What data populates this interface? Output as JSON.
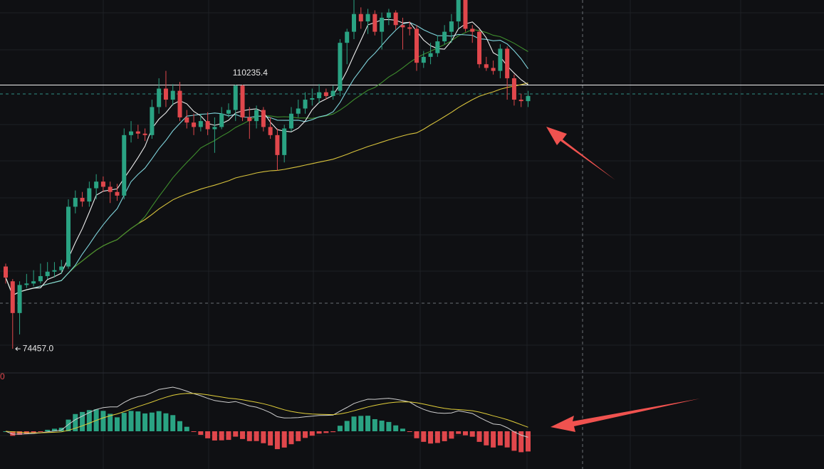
{
  "chart_data": {
    "type": "candlestick",
    "open": [
      85600,
      83600,
      79300,
      83100,
      83300,
      83600,
      84300,
      84900,
      85100,
      85600,
      93700,
      94900,
      94400,
      96200,
      97100,
      96400,
      95700,
      95200,
      103400,
      103900,
      103600,
      103400,
      107200,
      109700,
      108200,
      109400,
      105800,
      105100,
      104500,
      105300,
      104200,
      104500,
      106300,
      106800,
      110100,
      105800,
      105300,
      106800,
      104500,
      103400,
      100700,
      104300,
      106300,
      107000,
      108200,
      108400,
      109200,
      108700,
      109400,
      115900,
      117400,
      119800,
      118800,
      119800,
      117400,
      119300,
      120000,
      118300,
      118000,
      117800,
      113200,
      114000,
      114500,
      116100,
      117400,
      118800,
      122200,
      117800,
      117400,
      113000,
      112500,
      112100,
      115100,
      111100,
      108200,
      108000
    ],
    "high": [
      86000,
      83900,
      83600,
      84600,
      85100,
      86000,
      86200,
      86200,
      86500,
      94700,
      95900,
      95700,
      97100,
      98100,
      97800,
      97100,
      96800,
      104300,
      105300,
      104800,
      104300,
      108200,
      111100,
      112100,
      110300,
      110600,
      106800,
      106300,
      106300,
      106500,
      105800,
      107200,
      107700,
      110235.4,
      110235.4,
      107200,
      107400,
      107200,
      105800,
      104300,
      104800,
      107200,
      108200,
      109200,
      109700,
      110300,
      109700,
      110100,
      116400,
      117800,
      121700,
      120700,
      120500,
      120300,
      120000,
      120500,
      120300,
      119300,
      118800,
      118300,
      114800,
      115900,
      116900,
      118300,
      119800,
      122700,
      122700,
      118300,
      117700,
      114000,
      113500,
      115700,
      115400,
      111600,
      109000,
      109400
    ],
    "low": [
      83300,
      74457,
      76400,
      82700,
      82900,
      83300,
      83900,
      84100,
      84600,
      85300,
      92800,
      93700,
      93700,
      94700,
      95700,
      94200,
      94500,
      94700,
      102400,
      102900,
      102600,
      102900,
      106300,
      107200,
      107400,
      105300,
      104300,
      103400,
      103900,
      103400,
      101000,
      104200,
      105800,
      105300,
      105300,
      102900,
      104300,
      103900,
      102900,
      98600,
      99700,
      103900,
      105800,
      106300,
      107400,
      107700,
      108200,
      108200,
      108700,
      113000,
      116400,
      117800,
      117100,
      116900,
      115000,
      118300,
      117700,
      115000,
      116900,
      112100,
      112500,
      113000,
      114000,
      115700,
      115900,
      117800,
      117400,
      115900,
      112500,
      112100,
      111600,
      111100,
      108200,
      107400,
      107200,
      107200
    ],
    "close": [
      84100,
      79300,
      83100,
      83300,
      83600,
      84300,
      84900,
      85100,
      85600,
      93700,
      94900,
      94400,
      96200,
      97100,
      96400,
      95700,
      95200,
      103400,
      103900,
      103600,
      103400,
      107200,
      109700,
      108200,
      109400,
      105800,
      105100,
      104500,
      105300,
      104200,
      104500,
      106300,
      106800,
      110100,
      105800,
      105300,
      106800,
      104500,
      103400,
      100700,
      104300,
      106300,
      107000,
      108200,
      108400,
      109200,
      108700,
      109400,
      115900,
      117400,
      119800,
      118800,
      119800,
      117400,
      119300,
      120000,
      118300,
      118000,
      117800,
      113200,
      114000,
      114500,
      116100,
      117400,
      118800,
      122200,
      117800,
      117400,
      113000,
      112500,
      112100,
      115100,
      111100,
      108200,
      108000,
      108700
    ],
    "up_color": "#2aa383",
    "down_color": "#e0474c",
    "ylim": [
      71380,
      121700
    ],
    "ma": [
      {
        "period": 60,
        "color": "#d8c33c"
      },
      {
        "period": 20,
        "color": "#3f8f2e"
      },
      {
        "period": 10,
        "color": "#7fd3db"
      },
      {
        "period": 5,
        "color": "#ececec"
      }
    ],
    "macd": {
      "fast": 12,
      "slow": 26,
      "signal": 9,
      "dif_color": "#cfcfcf",
      "dea_color": "#e2cf3a"
    },
    "annotations": [
      {
        "at": 33,
        "text": "110235.4"
      },
      {
        "at": 1,
        "text": "74457.0"
      }
    ],
    "macd_label": "0"
  }
}
